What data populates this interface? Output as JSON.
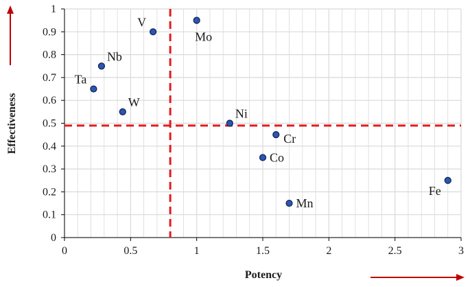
{
  "chart_data": {
    "type": "scatter",
    "xlabel": "Potency",
    "ylabel": "Effectiveness",
    "xlim": [
      0,
      3
    ],
    "ylim": [
      0,
      1
    ],
    "x_ticks": [
      "0",
      "0.5",
      "1",
      "1.5",
      "2",
      "2.5",
      "3"
    ],
    "y_ticks": [
      "0",
      "0.1",
      "0.2",
      "0.3",
      "0.4",
      "0.5",
      "0.6",
      "0.7",
      "0.8",
      "0.9",
      "1"
    ],
    "grid": true,
    "points": [
      {
        "label": "Ta",
        "x": 0.22,
        "y": 0.65,
        "label_pos": "upper-left"
      },
      {
        "label": "Nb",
        "x": 0.28,
        "y": 0.75,
        "label_pos": "upper-right"
      },
      {
        "label": "W",
        "x": 0.44,
        "y": 0.55,
        "label_pos": "upper-right"
      },
      {
        "label": "V",
        "x": 0.67,
        "y": 0.9,
        "label_pos": "upper-left"
      },
      {
        "label": "Mo",
        "x": 1.0,
        "y": 0.95,
        "label_pos": "below"
      },
      {
        "label": "Ni",
        "x": 1.25,
        "y": 0.5,
        "label_pos": "upper-right"
      },
      {
        "label": "Co",
        "x": 1.5,
        "y": 0.35,
        "label_pos": "right"
      },
      {
        "label": "Cr",
        "x": 1.6,
        "y": 0.45,
        "label_pos": "lower-right"
      },
      {
        "label": "Mn",
        "x": 1.7,
        "y": 0.15,
        "label_pos": "right"
      },
      {
        "label": "Fe",
        "x": 2.9,
        "y": 0.25,
        "label_pos": "lower-left"
      }
    ],
    "threshold_lines": [
      {
        "axis": "x",
        "value": 0.8,
        "style": "dashed",
        "color": "#e31a1c"
      },
      {
        "axis": "y",
        "value": 0.49,
        "style": "dashed",
        "color": "#e31a1c"
      }
    ],
    "axis_arrows": {
      "color": "#c00000"
    },
    "colors": {
      "point_fill": "#2c56b4",
      "point_stroke": "#0d1f4d",
      "grid": "#d9d9d9",
      "axis": "#000000"
    }
  }
}
